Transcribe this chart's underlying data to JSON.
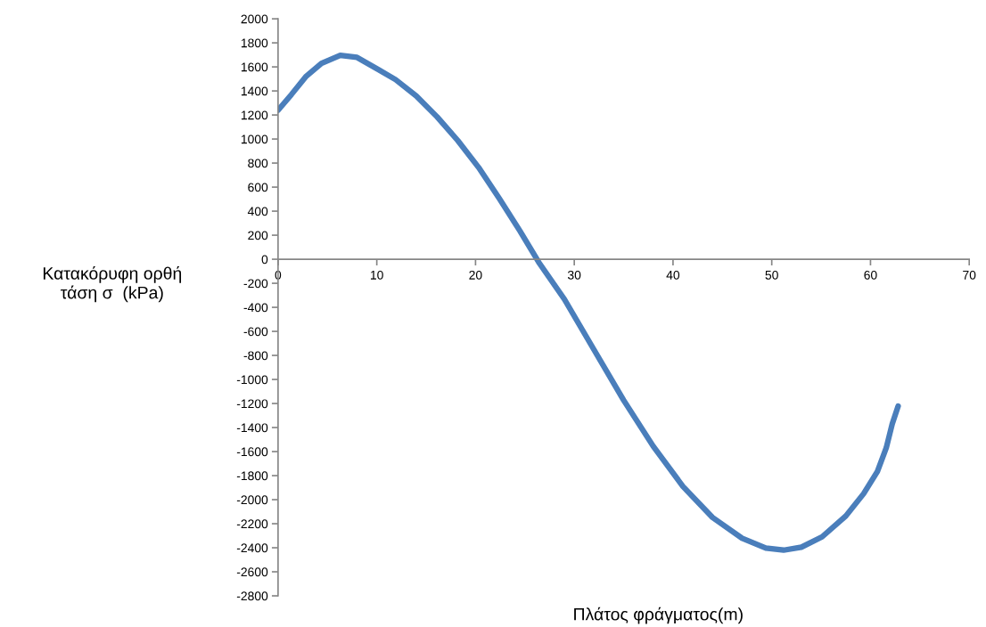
{
  "chart_data": {
    "type": "line",
    "xlabel": "Πλάτος φράγματος(m)",
    "ylabel": "Κατακόρυφη ορθή\nτάση σ  (kPa)",
    "xlim": [
      0,
      70
    ],
    "xticks": [
      0,
      10,
      20,
      30,
      40,
      50,
      60,
      70
    ],
    "ylim": [
      -2800,
      2000
    ],
    "yticks": [
      -2800,
      -2600,
      -2400,
      -2200,
      -2000,
      -1800,
      -1600,
      -1400,
      -1200,
      -1000,
      -800,
      -600,
      -400,
      -200,
      0,
      200,
      400,
      600,
      800,
      1000,
      1200,
      1400,
      1600,
      1800,
      2000
    ],
    "grid": false,
    "marker": "none",
    "line_style": "solid",
    "series": [
      {
        "color": "#4a7ebb",
        "x": [
          0,
          1.35,
          2.8,
          4.4,
          6.3,
          8.0,
          10.1,
          11.9,
          14.0,
          16.1,
          18.2,
          20.3,
          22.4,
          24.5,
          26.4,
          29.0,
          32.0,
          35.0,
          38.0,
          41.0,
          44.0,
          47.0,
          49.4,
          51.2,
          53.0,
          55.1,
          57.5,
          59.3,
          60.7,
          61.6,
          62.2,
          62.8
        ],
        "values": [
          1240,
          1370,
          1518,
          1630,
          1696,
          1679,
          1580,
          1494,
          1358,
          1185,
          988,
          765,
          506,
          235,
          -25,
          -333,
          -753,
          -1173,
          -1556,
          -1889,
          -2148,
          -2321,
          -2402,
          -2420,
          -2395,
          -2309,
          -2136,
          -1951,
          -1765,
          -1568,
          -1370,
          -1222
        ]
      }
    ]
  }
}
